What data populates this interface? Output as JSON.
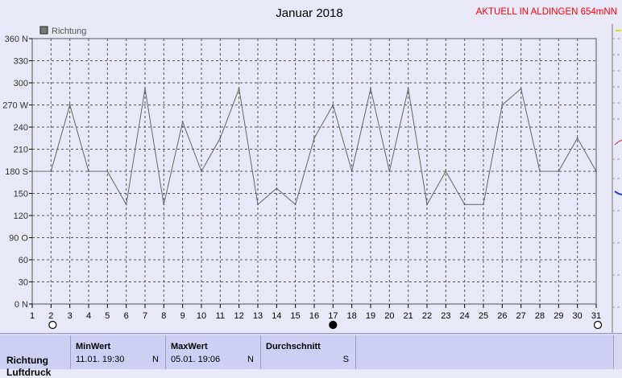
{
  "header": {
    "title": "Januar 2018",
    "station": "AKTUELL IN ALDINGEN 654mNN"
  },
  "colors": {
    "line": "#666666",
    "station": "#ff0000",
    "grid": "#555555",
    "background": "#e8e8f8"
  },
  "chart_data": {
    "type": "line",
    "title": "Januar 2018",
    "legend": "top-left",
    "grid": true,
    "x": [
      1,
      2,
      3,
      4,
      5,
      6,
      7,
      8,
      9,
      10,
      11,
      12,
      13,
      14,
      15,
      16,
      17,
      18,
      19,
      20,
      21,
      22,
      23,
      24,
      25,
      26,
      27,
      28,
      29,
      30,
      31
    ],
    "xlim": [
      1,
      31
    ],
    "ylim": [
      0,
      360
    ],
    "yticks": [
      {
        "v": 360,
        "label": "360 N"
      },
      {
        "v": 330,
        "label": "330"
      },
      {
        "v": 300,
        "label": "300"
      },
      {
        "v": 270,
        "label": "270 W"
      },
      {
        "v": 240,
        "label": "240"
      },
      {
        "v": 210,
        "label": "210"
      },
      {
        "v": 180,
        "label": "180 S"
      },
      {
        "v": 150,
        "label": "150"
      },
      {
        "v": 120,
        "label": "120"
      },
      {
        "v": 90,
        "label": "90  O"
      },
      {
        "v": 60,
        "label": "60"
      },
      {
        "v": 30,
        "label": "30"
      },
      {
        "v": 0,
        "label": "0   N"
      }
    ],
    "series": [
      {
        "name": "Richtung",
        "values": [
          180,
          180,
          270,
          180,
          180,
          135,
          292,
          135,
          247,
          180,
          225,
          292,
          135,
          157,
          135,
          225,
          270,
          180,
          292,
          180,
          292,
          135,
          180,
          135,
          135,
          270,
          292,
          180,
          180,
          225,
          180
        ]
      }
    ]
  },
  "moon": {
    "full": [
      2,
      31
    ],
    "new": [
      17
    ]
  },
  "panel": {
    "row_label": "Richtung",
    "row_label_2": "Luftdruck",
    "min": {
      "header": "MinWert",
      "time": "11.01.  19:30",
      "dir": "N"
    },
    "max": {
      "header": "MaxWert",
      "time": "05.01.  19:06",
      "dir": "N"
    },
    "avg": {
      "header": "Durchschnitt",
      "dir": "S"
    }
  }
}
